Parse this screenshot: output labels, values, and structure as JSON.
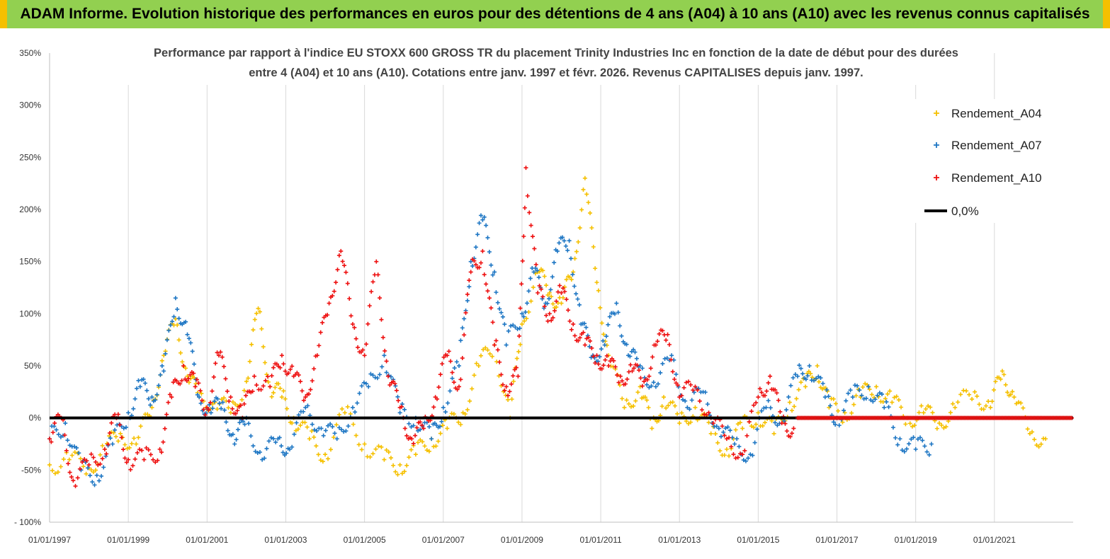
{
  "header": {
    "title": "ADAM Informe. Evolution historique des performances en euros pour des détentions de 4 ans (A04) à 10 ans (A10) avec les revenus connus capitalisés"
  },
  "colors": {
    "banner": "#92d050",
    "a04": "#f5c000",
    "a07": "#1f77c4",
    "a10": "#ee1111",
    "zero": "#000000",
    "grid": "#d9d9d9"
  },
  "chart_data": {
    "type": "scatter",
    "title_line1": "Performance par rapport à l'indice EU STOXX 600 GROSS TR  du placement Trinity Industries Inc en fonction de la date de début pour des durées",
    "title_line2": "entre 4 (A04) et 10 ans (A10). Cotations entre janv. 1997 et févr. 2026. Revenus CAPITALISES depuis janv. 1997.",
    "ylim": [
      -100,
      350
    ],
    "y_ticks": [
      "350%",
      "300%",
      "250%",
      "200%",
      "150%",
      "100%",
      "50%",
      "0%",
      "-50%",
      "- 100%"
    ],
    "x_range": [
      1997.0,
      2023.0
    ],
    "x_ticks": [
      "01/01/1997",
      "01/01/1999",
      "01/01/2001",
      "01/01/2003",
      "01/01/2005",
      "01/01/2007",
      "01/01/2009",
      "01/01/2011",
      "01/01/2013",
      "01/01/2015",
      "01/01/2017",
      "01/01/2019",
      "01/01/2021"
    ],
    "grid": "vertical",
    "legend_position": "top-right",
    "series": [
      {
        "name": "Rendement_A04",
        "color": "#f5c000",
        "x": [
          1997.0,
          1997.5,
          1998.0,
          1998.4,
          1998.8,
          1999.2,
          1999.6,
          1999.9,
          2000.2,
          2000.5,
          2000.8,
          2001.2,
          2001.6,
          2002.0,
          2002.3,
          2002.6,
          2002.9,
          2003.2,
          2003.6,
          2004.0,
          2004.5,
          2005.0,
          2005.5,
          2005.9,
          2006.3,
          2006.7,
          2007.1,
          2007.5,
          2007.9,
          2008.3,
          2008.7,
          2009.0,
          2009.4,
          2009.7,
          2010.0,
          2010.3,
          2010.6,
          2010.9,
          2011.2,
          2011.6,
          2012.0,
          2012.3,
          2012.6,
          2013.0,
          2013.4,
          2013.8,
          2014.2,
          2014.6,
          2015.0,
          2015.4,
          2015.8,
          2016.2,
          2016.5,
          2016.8,
          2017.2,
          2017.6,
          2018.0,
          2018.4,
          2018.8,
          2019.2,
          2019.6,
          2020.0,
          2020.5,
          2020.9,
          2021.2,
          2021.5,
          2021.9,
          2022.3
        ],
        "y": [
          -45,
          -40,
          -48,
          -30,
          -15,
          -25,
          10,
          60,
          95,
          40,
          20,
          15,
          5,
          35,
          105,
          30,
          20,
          0,
          -20,
          -35,
          5,
          -25,
          -40,
          -45,
          -35,
          -20,
          -10,
          5,
          50,
          70,
          0,
          90,
          140,
          120,
          110,
          140,
          230,
          130,
          60,
          10,
          30,
          -10,
          20,
          -5,
          10,
          -15,
          -30,
          -10,
          5,
          -15,
          15,
          30,
          50,
          10,
          5,
          20,
          30,
          15,
          0,
          5,
          -5,
          10,
          25,
          10,
          45,
          20,
          -15,
          -20
        ]
      },
      {
        "name": "Rendement_A07",
        "color": "#1f77c4",
        "x": [
          1997.0,
          1997.4,
          1997.8,
          1998.2,
          1998.6,
          1999.0,
          1999.3,
          1999.6,
          1999.9,
          2000.2,
          2000.5,
          2000.8,
          2001.1,
          2001.4,
          2001.7,
          2002.0,
          2002.4,
          2002.8,
          2003.1,
          2003.5,
          2003.9,
          2004.3,
          2004.7,
          2005.1,
          2005.5,
          2005.9,
          2006.3,
          2006.7,
          2007.0,
          2007.4,
          2007.7,
          2008.0,
          2008.3,
          2008.6,
          2009.0,
          2009.3,
          2009.6,
          2009.9,
          2010.2,
          2010.5,
          2010.8,
          2011.1,
          2011.4,
          2011.7,
          2012.0,
          2012.4,
          2012.8,
          2013.2,
          2013.6,
          2014.0,
          2014.4,
          2014.8,
          2015.2,
          2015.6,
          2016.0,
          2016.3,
          2016.7,
          2017.0,
          2017.4,
          2017.8,
          2018.2,
          2018.6,
          2019.0,
          2019.4
        ],
        "y": [
          -20,
          -5,
          -50,
          -55,
          -25,
          5,
          30,
          20,
          45,
          115,
          80,
          20,
          5,
          15,
          -25,
          0,
          -40,
          -20,
          -30,
          10,
          -10,
          -20,
          10,
          30,
          60,
          5,
          0,
          -20,
          10,
          50,
          150,
          190,
          140,
          70,
          100,
          140,
          110,
          160,
          170,
          90,
          60,
          70,
          110,
          60,
          50,
          30,
          60,
          10,
          25,
          -10,
          -25,
          -35,
          10,
          0,
          40,
          50,
          20,
          0,
          20,
          30,
          10,
          -20,
          -30,
          -25
        ]
      },
      {
        "name": "Rendement_A10",
        "color": "#ee1111",
        "x": [
          1997.0,
          1997.3,
          1997.6,
          1998.0,
          1998.4,
          1998.7,
          1999.0,
          1999.4,
          1999.8,
          2000.1,
          2000.4,
          2000.7,
          2001.0,
          2001.3,
          2001.6,
          2001.9,
          2002.2,
          2002.6,
          2002.9,
          2003.2,
          2003.5,
          2003.8,
          2004.1,
          2004.4,
          2004.7,
          2005.0,
          2005.3,
          2005.6,
          2005.9,
          2006.2,
          2006.5,
          2006.8,
          2007.1,
          2007.4,
          2007.7,
          2008.0,
          2008.3,
          2008.6,
          2008.9,
          2009.1,
          2009.4,
          2009.7,
          2010.0,
          2010.3,
          2010.6,
          2010.9,
          2011.2,
          2011.5,
          2011.8,
          2012.1,
          2012.4,
          2012.7,
          2013.0,
          2013.4,
          2013.8,
          2014.2,
          2014.6,
          2015.0,
          2015.3,
          2015.6,
          2015.9
        ],
        "y": [
          -20,
          0,
          -60,
          -45,
          -30,
          0,
          -40,
          -40,
          -30,
          20,
          50,
          30,
          10,
          60,
          20,
          0,
          40,
          30,
          60,
          40,
          20,
          60,
          110,
          160,
          90,
          60,
          150,
          40,
          10,
          -20,
          -10,
          20,
          60,
          30,
          140,
          160,
          70,
          30,
          40,
          240,
          120,
          100,
          120,
          90,
          70,
          60,
          50,
          40,
          45,
          35,
          70,
          80,
          20,
          30,
          0,
          -20,
          -35,
          20,
          40,
          -5,
          -10
        ]
      },
      {
        "name": "0,0%",
        "color": "#000000",
        "x": [
          1997.0,
          2023.0
        ],
        "y": [
          0,
          0
        ]
      }
    ]
  }
}
